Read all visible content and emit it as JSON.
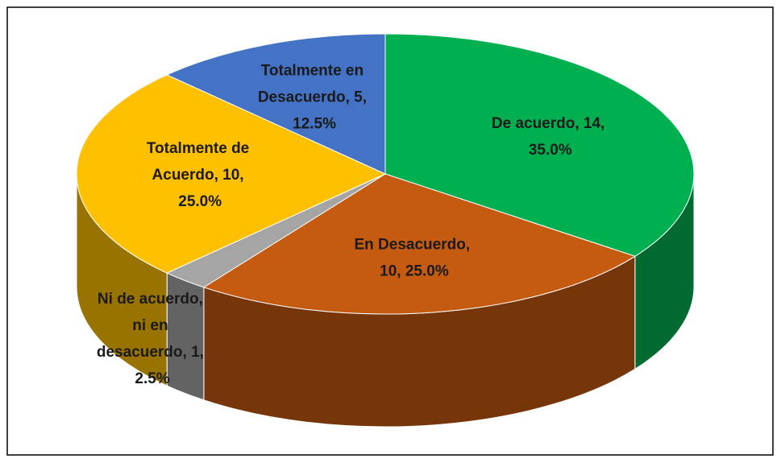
{
  "chart_data": {
    "type": "pie3d",
    "values": [
      14,
      10,
      1,
      10,
      5
    ],
    "value_labels": [
      "De acuerdo, 14, 35.0%",
      "En Desacuerdo, 10, 25.0%",
      "Ni de acuerdo, ni en desacuerdo, 1, 2.5%",
      "Totalmente de Acuerdo, 10, 25.0%",
      "Totalmente en Desacuerdo, 5, 12.5%"
    ],
    "colors": [
      "#00b050",
      "#c55a11",
      "#a5a5a5",
      "#ffc000",
      "#4472c4"
    ]
  }
}
